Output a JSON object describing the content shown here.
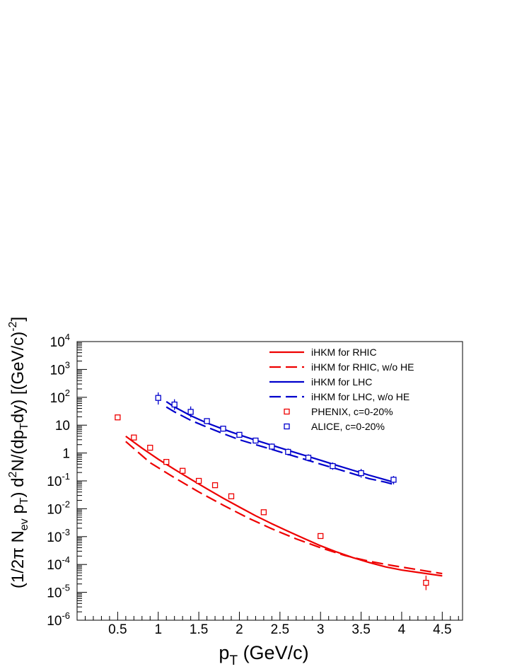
{
  "chart_data": {
    "type": "scatter",
    "xlabel": {
      "main": "p",
      "sub": "T",
      "rest": " (GeV/c)"
    },
    "ylabel": {
      "p1": "(1/2π N",
      "s1": "ev",
      "p2": " p",
      "s2": "T",
      "p3": ") d",
      "sup1": "2",
      "p4": "N/(dp",
      "s3": "T",
      "p5": "dy) [(GeV/c)",
      "sup2": "-2",
      "p6": "]"
    },
    "xlim": [
      0,
      4.75
    ],
    "ylim": [
      1e-06,
      10000.0
    ],
    "yscale": "log",
    "grid": false,
    "legend_position": "top-right",
    "x_ticks": [
      {
        "v": 0.5,
        "label": "0.5"
      },
      {
        "v": 1,
        "label": "1"
      },
      {
        "v": 1.5,
        "label": "1.5"
      },
      {
        "v": 2,
        "label": "2"
      },
      {
        "v": 2.5,
        "label": "2.5"
      },
      {
        "v": 3,
        "label": "3"
      },
      {
        "v": 3.5,
        "label": "3.5"
      },
      {
        "v": 4,
        "label": "4"
      },
      {
        "v": 4.5,
        "label": "4.5"
      }
    ],
    "y_ticks": [
      {
        "v": 1e-06,
        "base": "10",
        "exp": "-6"
      },
      {
        "v": 1e-05,
        "base": "10",
        "exp": "-5"
      },
      {
        "v": 0.0001,
        "base": "10",
        "exp": "-4"
      },
      {
        "v": 0.001,
        "base": "10",
        "exp": "-3"
      },
      {
        "v": 0.01,
        "base": "10",
        "exp": "-2"
      },
      {
        "v": 0.1,
        "base": "10",
        "exp": "-1"
      },
      {
        "v": 1,
        "base": "1",
        "exp": ""
      },
      {
        "v": 10,
        "base": "10",
        "exp": ""
      },
      {
        "v": 100,
        "base": "10",
        "exp": "2"
      },
      {
        "v": 1000,
        "base": "10",
        "exp": "3"
      },
      {
        "v": 10000,
        "base": "10",
        "exp": "4"
      }
    ],
    "series": [
      {
        "name": "iHKM for RHIC",
        "kind": "line",
        "dash": "solid",
        "color": "#ee0000",
        "x": [
          0.6,
          0.8,
          1.0,
          1.2,
          1.4,
          1.6,
          1.8,
          2.0,
          2.2,
          2.4,
          2.6,
          2.8,
          3.0,
          3.2,
          3.4,
          3.6,
          3.8,
          4.0,
          4.2,
          4.5
        ],
        "y": [
          4.0,
          1.5,
          0.6,
          0.26,
          0.115,
          0.052,
          0.024,
          0.0115,
          0.0056,
          0.0029,
          0.00155,
          0.00085,
          0.00047,
          0.00028,
          0.000175,
          0.000118,
          8.2e-05,
          6.3e-05,
          5.2e-05,
          3.9e-05
        ]
      },
      {
        "name": "iHKM for RHIC, w/o HE",
        "kind": "line",
        "dash": "dashed",
        "color": "#ee0000",
        "x": [
          0.6,
          0.9,
          1.2,
          1.5,
          1.8,
          2.1,
          2.4,
          2.7,
          3.0,
          3.3,
          3.6,
          3.9,
          4.2,
          4.5
        ],
        "y": [
          2.6,
          0.45,
          0.13,
          0.04,
          0.0135,
          0.0048,
          0.0019,
          0.00083,
          0.0004,
          0.00021,
          0.00013,
          9e-05,
          6.5e-05,
          4.7e-05
        ]
      },
      {
        "name": "iHKM for LHC",
        "kind": "line",
        "dash": "solid",
        "color": "#0000cc",
        "x": [
          1.1,
          1.2,
          1.4,
          1.6,
          1.8,
          2.0,
          2.2,
          2.4,
          2.6,
          2.8,
          3.0,
          3.2,
          3.4,
          3.6,
          3.8,
          3.9
        ],
        "y": [
          70,
          45,
          22,
          12,
          7.2,
          4.5,
          2.9,
          1.9,
          1.25,
          0.83,
          0.55,
          0.36,
          0.24,
          0.16,
          0.11,
          0.09
        ]
      },
      {
        "name": "iHKM for LHC, w/o HE",
        "kind": "line",
        "dash": "dashed",
        "color": "#0000cc",
        "x": [
          1.1,
          1.2,
          1.4,
          1.6,
          1.8,
          2.0,
          2.2,
          2.4,
          2.6,
          2.8,
          3.0,
          3.2,
          3.4,
          3.6,
          3.8,
          3.9
        ],
        "y": [
          45,
          30,
          15,
          8.5,
          5.0,
          3.0,
          2.0,
          1.35,
          0.9,
          0.6,
          0.4,
          0.27,
          0.18,
          0.12,
          0.09,
          0.075
        ]
      },
      {
        "name": "PHENIX, c=0-20%",
        "kind": "points",
        "color": "#ee0000",
        "x": [
          0.5,
          0.7,
          0.9,
          1.1,
          1.3,
          1.5,
          1.7,
          1.9,
          2.3,
          3.0,
          4.3
        ],
        "y": [
          19,
          3.6,
          1.55,
          0.48,
          0.23,
          0.1,
          0.07,
          0.028,
          0.0075,
          0.00105,
          2.2e-05
        ],
        "ylo": [
          16,
          3.0,
          1.3,
          0.42,
          0.2,
          0.088,
          0.061,
          0.025,
          0.0064,
          0.00091,
          1.2e-05
        ],
        "yhi": [
          23,
          4.3,
          1.8,
          0.55,
          0.27,
          0.115,
          0.08,
          0.032,
          0.0088,
          0.00122,
          4e-05
        ]
      },
      {
        "name": "ALICE, c=0-20%",
        "kind": "points",
        "color": "#0000cc",
        "x": [
          1.0,
          1.2,
          1.4,
          1.6,
          1.8,
          2.0,
          2.2,
          2.4,
          2.6,
          2.85,
          3.15,
          3.5,
          3.9
        ],
        "y": [
          95,
          55,
          30,
          14,
          7.5,
          4.5,
          2.8,
          1.7,
          1.1,
          0.68,
          0.34,
          0.19,
          0.11
        ],
        "ylo": [
          55,
          35,
          19,
          11,
          5.9,
          3.6,
          2.2,
          1.3,
          0.82,
          0.5,
          0.25,
          0.13,
          0.075
        ],
        "yhi": [
          150,
          85,
          47,
          17.5,
          9.5,
          5.6,
          3.5,
          2.2,
          1.45,
          0.9,
          0.46,
          0.27,
          0.15
        ]
      }
    ]
  }
}
